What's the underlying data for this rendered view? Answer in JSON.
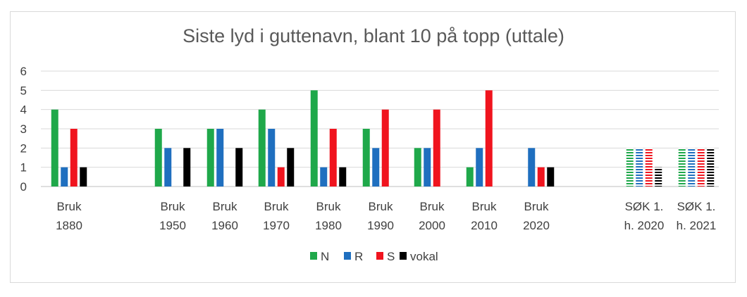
{
  "chart_data": {
    "type": "bar",
    "title": "Siste lyd i guttenavn, blant 10 på topp (uttale)",
    "xlabel": "",
    "ylabel": "",
    "ylim": [
      0,
      6
    ],
    "yticks": [
      0,
      1,
      2,
      3,
      4,
      5,
      6
    ],
    "grid": true,
    "legend": "bottom",
    "categories": [
      [
        "Bruk",
        "1880"
      ],
      [
        "Bruk",
        "1950"
      ],
      [
        "Bruk",
        "1960"
      ],
      [
        "Bruk",
        "1970"
      ],
      [
        "Bruk",
        "1980"
      ],
      [
        "Bruk",
        "1990"
      ],
      [
        "Bruk",
        "2000"
      ],
      [
        "Bruk",
        "2010"
      ],
      [
        "Bruk",
        "2020"
      ],
      [
        "SØK 1.",
        "h. 2020"
      ],
      [
        "SØK 1.",
        "h. 2021"
      ]
    ],
    "series": [
      {
        "name": "N",
        "color": "#1fa84a",
        "values": [
          4,
          3,
          3,
          4,
          5,
          3,
          2,
          1,
          0,
          2,
          2
        ]
      },
      {
        "name": "R",
        "color": "#1f6fbf",
        "values": [
          1,
          2,
          3,
          3,
          1,
          2,
          2,
          2,
          2,
          2,
          2
        ]
      },
      {
        "name": "S",
        "color": "#f0141e",
        "values": [
          3,
          0,
          0,
          1,
          3,
          4,
          4,
          5,
          1,
          2,
          2
        ]
      },
      {
        "name": "vokal",
        "color": "#000000",
        "values": [
          1,
          2,
          2,
          2,
          1,
          0,
          0,
          0,
          1,
          1,
          2
        ]
      }
    ],
    "striped_categories": [
      9,
      10
    ]
  }
}
